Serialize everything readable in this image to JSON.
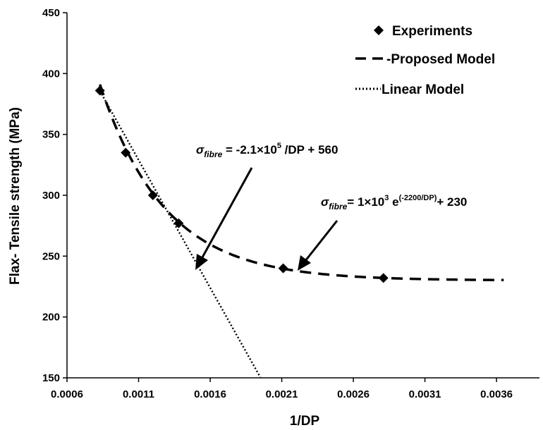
{
  "chart_data": {
    "type": "scatter",
    "xlabel": "1/DP",
    "ylabel": "Flax- Tensile strength (MPa)",
    "xlim": [
      0.0006,
      0.0039
    ],
    "ylim": [
      150,
      450
    ],
    "x_ticks": [
      "0.0006",
      "0.0011",
      "0.0016",
      "0.0021",
      "0.0026",
      "0.0031",
      "0.0036"
    ],
    "y_ticks": [
      "150",
      "200",
      "250",
      "300",
      "350",
      "400",
      "450"
    ],
    "grid": false,
    "legend_position": "top-right",
    "series": [
      {
        "name": "Experiments",
        "kind": "markers",
        "marker": "diamond",
        "color": "#000000",
        "x": [
          0.00083,
          0.00101,
          0.0012,
          0.00138,
          0.00211,
          0.00281
        ],
        "y": [
          386,
          335,
          300,
          277,
          240,
          232
        ]
      },
      {
        "name": "-Proposed Model",
        "kind": "line",
        "style": "dashed",
        "color": "#000000",
        "function": "1000*exp(-2200*x)+230",
        "x_range": [
          0.00083,
          0.00365
        ]
      },
      {
        "name": "Linear Model",
        "kind": "line",
        "style": "dotted",
        "color": "#000000",
        "function": "-210000*x+560",
        "x_range": [
          0.00083,
          0.00195
        ]
      }
    ],
    "annotations": [
      {
        "prefix": "σ",
        "sub": "fibre",
        "text": " = -2.1×10",
        "sup": "5",
        "suffix": " /DP  + 560",
        "arrow_to": [
          0.0015,
          245
        ]
      },
      {
        "prefix": "σ",
        "sub": "fibre",
        "text": "= 1×10",
        "sup": "3",
        "text2": " e",
        "sup2": "(-2200/DP)",
        "suffix": "+ 230",
        "arrow_to": [
          0.00225,
          237
        ]
      }
    ]
  }
}
